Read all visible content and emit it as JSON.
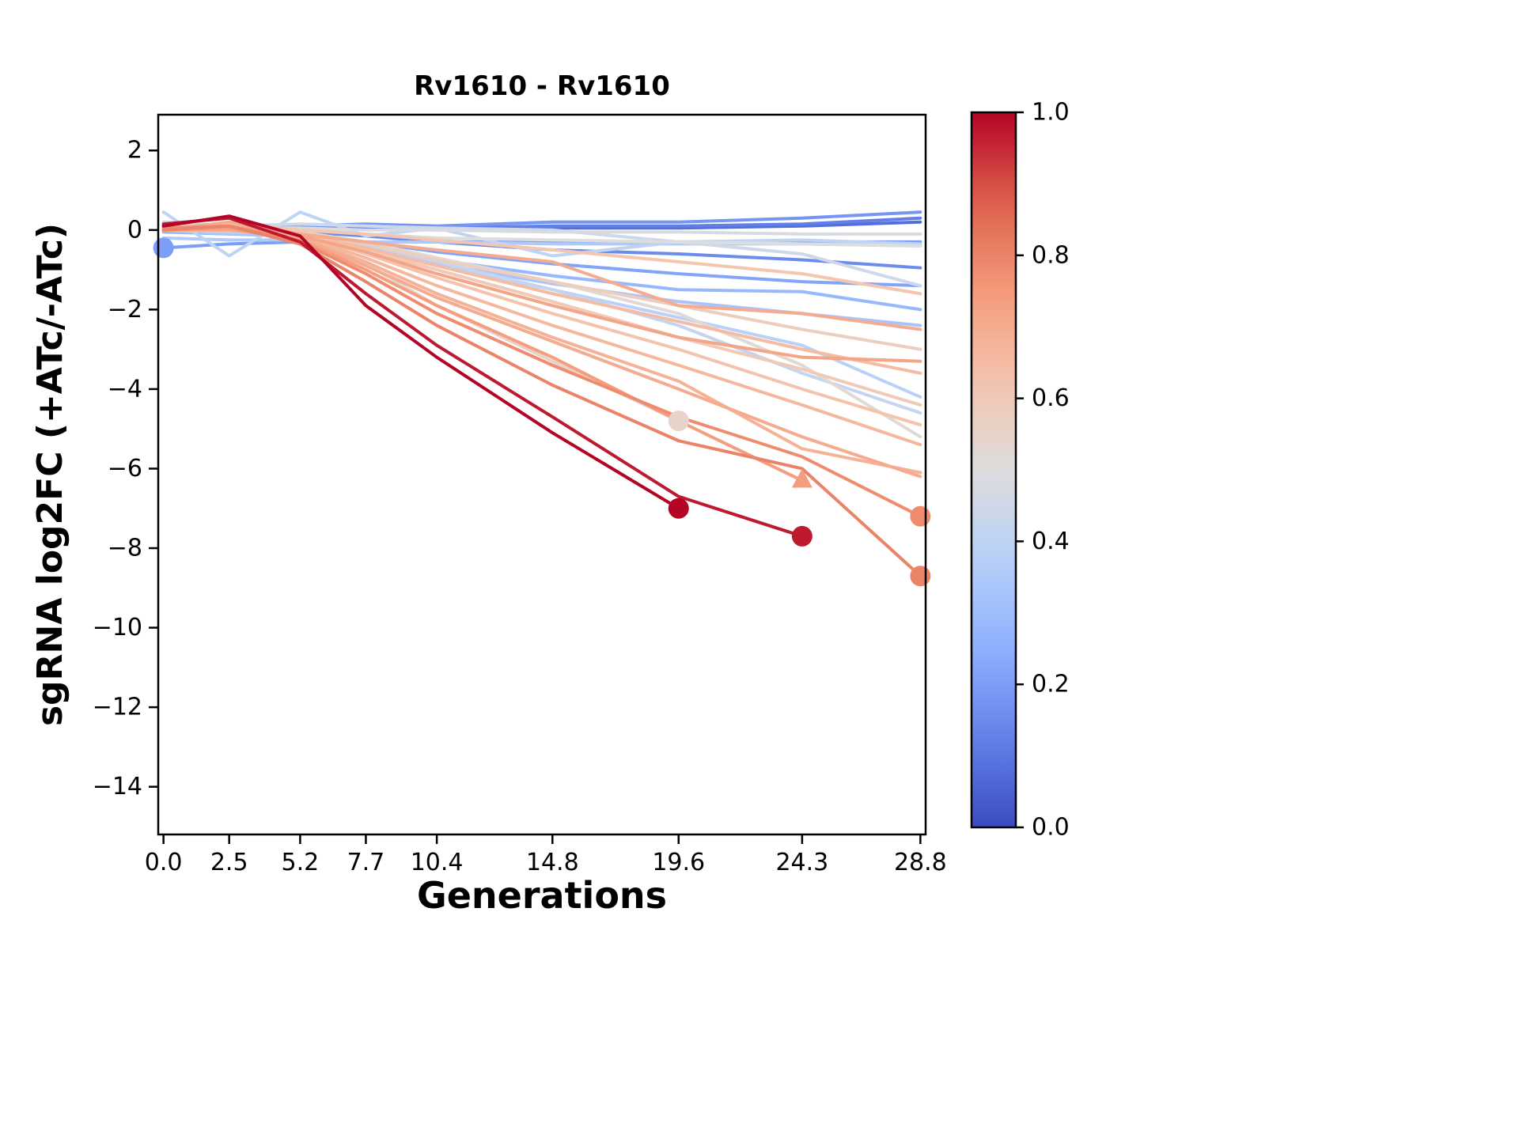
{
  "title": "Rv1610 - Rv1610",
  "colors": {
    "background": "#ffffff",
    "axis": "#000000",
    "colormap_low": "#3b4cc0",
    "colormap_mid": "#dddddd",
    "colormap_high": "#b40426"
  },
  "chart_data": {
    "type": "line",
    "title": "Rv1610 - Rv1610",
    "xlabel": "Generations",
    "ylabel": "sgRNA log2FC (+ATc/-ATc)",
    "x": [
      0.0,
      2.5,
      5.2,
      7.7,
      10.4,
      14.8,
      19.6,
      24.3,
      28.8
    ],
    "xtick_labels": [
      "0.0",
      "2.5",
      "5.2",
      "7.7",
      "10.4",
      "14.8",
      "19.6",
      "24.3",
      "28.8"
    ],
    "yticks": [
      2,
      0,
      -2,
      -4,
      -6,
      -8,
      -10,
      -12,
      -14
    ],
    "ytick_labels": [
      "2",
      "0",
      "−2",
      "−4",
      "−6",
      "−8",
      "−10",
      "−12",
      "−14"
    ],
    "xlim": [
      -0.2,
      29.0
    ],
    "ylim": [
      -15.2,
      2.9
    ],
    "grid": false,
    "legend": "none",
    "colormap": "coolwarm",
    "colorbar": {
      "min": 0.0,
      "max": 1.0,
      "tick_values": [
        1.0,
        0.8,
        0.6,
        0.4,
        0.2,
        0.0
      ],
      "tick_labels": [
        "1.0",
        "0.8",
        "0.6",
        "0.4",
        "0.2",
        "0.0"
      ],
      "position": "right"
    },
    "series": [
      {
        "c": 0.08,
        "y": [
          0.0,
          -0.05,
          0.0,
          0.05,
          0.0,
          0.05,
          0.05,
          0.1,
          0.2
        ]
      },
      {
        "c": 0.12,
        "y": [
          0.05,
          0.0,
          0.05,
          0.1,
          0.05,
          0.1,
          0.1,
          0.15,
          0.3
        ]
      },
      {
        "c": 0.15,
        "y": [
          0.0,
          0.0,
          -0.05,
          -0.15,
          -0.3,
          -0.5,
          -0.6,
          -0.75,
          -0.95
        ]
      },
      {
        "c": 0.18,
        "y": [
          0.1,
          0.1,
          0.1,
          0.15,
          0.1,
          0.2,
          0.2,
          0.3,
          0.45
        ]
      },
      {
        "c": 0.2,
        "y": [
          -0.45,
          -0.35,
          -0.3,
          -0.3,
          -0.3,
          -0.3,
          -0.3,
          -0.3,
          -0.3
        ],
        "start_marker": "circle"
      },
      {
        "c": 0.22,
        "y": [
          0.0,
          -0.05,
          -0.1,
          -0.3,
          -0.55,
          -0.85,
          -1.1,
          -1.3,
          -1.4
        ]
      },
      {
        "c": 0.28,
        "y": [
          -0.05,
          -0.1,
          -0.15,
          -0.4,
          -0.75,
          -1.15,
          -1.5,
          -1.55,
          -2.0
        ]
      },
      {
        "c": 0.33,
        "y": [
          0.0,
          -0.1,
          -0.1,
          -0.45,
          -0.85,
          -1.35,
          -1.8,
          -2.1,
          -2.4
        ]
      },
      {
        "c": 0.35,
        "y": [
          -0.2,
          -0.25,
          -0.25,
          -0.3,
          -0.3,
          -0.35,
          -0.35,
          -0.35,
          -0.4
        ]
      },
      {
        "c": 0.38,
        "y": [
          0.0,
          -0.05,
          -0.1,
          -0.4,
          -0.9,
          -1.5,
          -2.2,
          -2.9,
          -4.2
        ]
      },
      {
        "c": 0.4,
        "y": [
          0.45,
          -0.65,
          0.45,
          -0.15,
          0.05,
          -0.65,
          -0.3,
          -0.25,
          -0.35
        ]
      },
      {
        "c": 0.42,
        "y": [
          0.0,
          0.0,
          -0.05,
          -0.35,
          -0.8,
          -1.5,
          -2.4,
          -3.6,
          -4.6
        ]
      },
      {
        "c": 0.45,
        "y": [
          0.2,
          0.1,
          0.15,
          0.1,
          0.05,
          0.0,
          -0.3,
          -0.6,
          -1.4
        ]
      },
      {
        "c": 0.48,
        "y": [
          0.1,
          0.05,
          0.05,
          0.0,
          0.0,
          -0.05,
          -0.05,
          -0.1,
          -0.1
        ]
      },
      {
        "c": 0.5,
        "y": [
          0.0,
          0.0,
          0.0,
          -0.1,
          -0.2,
          -0.25,
          -0.3,
          -0.35,
          -0.4
        ]
      },
      {
        "c": 0.52,
        "y": [
          0.05,
          0.0,
          -0.05,
          -0.3,
          -0.7,
          -1.3,
          -2.1,
          -3.4,
          -5.2
        ]
      },
      {
        "c": 0.55,
        "y": [
          0.05,
          0.1,
          -0.1,
          -0.85,
          -1.9,
          -3.3,
          -4.8
        ],
        "end_marker": "circle"
      },
      {
        "c": 0.58,
        "y": [
          0.0,
          0.0,
          -0.05,
          -0.35,
          -0.75,
          -1.3,
          -1.9,
          -2.5,
          -3.0
        ]
      },
      {
        "c": 0.6,
        "y": [
          0.0,
          0.05,
          -0.1,
          -0.5,
          -1.0,
          -1.8,
          -2.7,
          -3.5,
          -4.4
        ]
      },
      {
        "c": 0.62,
        "y": [
          0.1,
          0.15,
          0.0,
          -0.1,
          -0.25,
          -0.5,
          -0.8,
          -1.1,
          -1.6
        ]
      },
      {
        "c": 0.63,
        "y": [
          0.0,
          0.0,
          -0.1,
          -0.6,
          -1.2,
          -2.1,
          -3.0,
          -4.0,
          -4.9
        ]
      },
      {
        "c": 0.65,
        "y": [
          0.0,
          0.0,
          -0.1,
          -0.45,
          -0.9,
          -1.6,
          -2.3,
          -3.0,
          -3.6
        ]
      },
      {
        "c": 0.66,
        "y": [
          0.0,
          0.0,
          -0.15,
          -0.7,
          -1.4,
          -2.4,
          -3.4,
          -4.4,
          -5.4
        ]
      },
      {
        "c": 0.68,
        "y": [
          0.0,
          0.05,
          -0.2,
          -0.8,
          -1.6,
          -2.7,
          -3.8,
          -5.5,
          -6.1
        ]
      },
      {
        "c": 0.7,
        "y": [
          0.0,
          0.0,
          -0.2,
          -0.9,
          -1.7,
          -2.8,
          -4.0,
          -5.2,
          -6.2
        ]
      },
      {
        "c": 0.7,
        "y": [
          0.0,
          0.2,
          -0.1,
          -0.3,
          -0.5,
          -0.8,
          -1.9,
          -2.1,
          -2.5
        ]
      },
      {
        "c": 0.72,
        "y": [
          0.0,
          0.1,
          -0.15,
          -0.55,
          -1.1,
          -1.9,
          -2.7,
          -3.2,
          -3.3
        ]
      },
      {
        "c": 0.74,
        "y": [
          0.0,
          0.05,
          -0.25,
          -1.0,
          -1.9,
          -3.2,
          -4.8,
          -6.3
        ],
        "end_marker": "triangle"
      },
      {
        "c": 0.78,
        "y": [
          0.05,
          0.1,
          -0.3,
          -1.1,
          -2.1,
          -3.4,
          -4.7,
          -5.7,
          -7.2
        ],
        "end_marker": "circle"
      },
      {
        "c": 0.8,
        "y": [
          0.0,
          0.1,
          -0.35,
          -1.3,
          -2.4,
          -3.9,
          -5.3,
          -6.0,
          -8.7
        ],
        "end_marker": "circle"
      },
      {
        "c": 0.97,
        "y": [
          0.15,
          0.3,
          -0.3,
          -1.6,
          -2.9,
          -4.7,
          -6.7,
          -7.7
        ],
        "end_marker": "circle"
      },
      {
        "c": 1.0,
        "y": [
          0.1,
          0.35,
          -0.15,
          -1.9,
          -3.2,
          -5.1,
          -7.0
        ],
        "end_marker": "circle"
      }
    ]
  }
}
